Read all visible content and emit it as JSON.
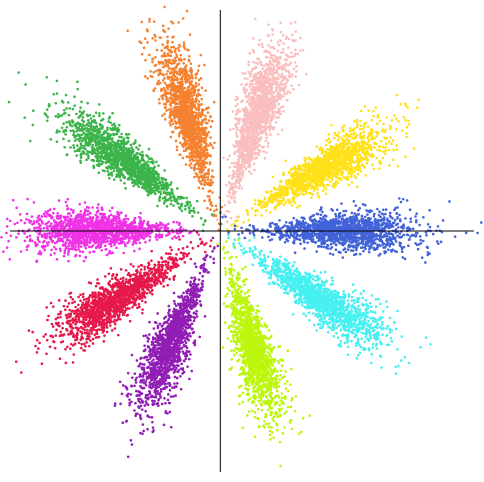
{
  "chart_data": {
    "type": "scatter",
    "title": "",
    "xlabel": "",
    "ylabel": "",
    "xlim": [
      -6.3,
      7.6
    ],
    "ylim": [
      -7.2,
      6.6
    ],
    "grid": false,
    "legend": "none",
    "axes_through_origin": true,
    "series": [
      {
        "color": "#4363d8",
        "direction_deg": 0,
        "points_per_cluster": 1500,
        "values": [
          [
            1.3,
            0
          ],
          [
            2.5,
            0
          ],
          [
            3.5,
            0
          ],
          [
            4.5,
            0
          ],
          [
            5.6,
            0
          ],
          [
            6.3,
            0
          ]
        ]
      },
      {
        "color": "#ffe119",
        "direction_deg": 31,
        "points_per_cluster": 1500,
        "values": [
          [
            1.5,
            0.9
          ],
          [
            2.5,
            1.5
          ],
          [
            3.4,
            2.1
          ],
          [
            4.3,
            2.6
          ],
          [
            5.1,
            3.1
          ],
          [
            5.5,
            3.4
          ]
        ]
      },
      {
        "color": "#fabebe",
        "direction_deg": 72,
        "points_per_cluster": 1500,
        "values": [
          [
            0.4,
            1.3
          ],
          [
            0.8,
            2.4
          ],
          [
            1.1,
            3.3
          ],
          [
            1.4,
            4.3
          ],
          [
            1.7,
            5.1
          ],
          [
            1.9,
            5.6
          ]
        ]
      },
      {
        "color": "#f58231",
        "direction_deg": 106,
        "points_per_cluster": 1500,
        "values": [
          [
            -0.3,
            1.2
          ],
          [
            -0.6,
            2.3
          ],
          [
            -0.9,
            3.4
          ],
          [
            -1.2,
            4.4
          ],
          [
            -1.5,
            5.4
          ],
          [
            -1.7,
            6.0
          ]
        ]
      },
      {
        "color": "#3cb44b",
        "direction_deg": 144,
        "points_per_cluster": 1500,
        "values": [
          [
            -0.8,
            0.6
          ],
          [
            -1.7,
            1.3
          ],
          [
            -2.5,
            1.9
          ],
          [
            -3.3,
            2.5
          ],
          [
            -3.9,
            2.9
          ],
          [
            -4.3,
            3.2
          ]
        ]
      },
      {
        "color": "#f032e6",
        "direction_deg": 180,
        "points_per_cluster": 1500,
        "values": [
          [
            -1.2,
            0
          ],
          [
            -2.3,
            0
          ],
          [
            -3.4,
            0
          ],
          [
            -4.5,
            0
          ],
          [
            -5.4,
            0
          ],
          [
            -5.9,
            0
          ]
        ]
      },
      {
        "color": "#e6194b",
        "direction_deg": 213,
        "points_per_cluster": 1500,
        "values": [
          [
            -1.0,
            -0.7
          ],
          [
            -2.0,
            -1.3
          ],
          [
            -3.0,
            -2.0
          ],
          [
            -3.9,
            -2.6
          ],
          [
            -4.7,
            -3.1
          ],
          [
            -5.0,
            -3.3
          ]
        ]
      },
      {
        "color": "#911eb4",
        "direction_deg": 246,
        "points_per_cluster": 1500,
        "values": [
          [
            -0.5,
            -1.1
          ],
          [
            -0.9,
            -2.2
          ],
          [
            -1.4,
            -3.2
          ],
          [
            -1.8,
            -4.2
          ],
          [
            -2.2,
            -5.0
          ],
          [
            -2.4,
            -5.5
          ]
        ]
      },
      {
        "color": "#bcf60c",
        "direction_deg": 286,
        "points_per_cluster": 1500,
        "values": [
          [
            0.3,
            -1.2
          ],
          [
            0.7,
            -2.3
          ],
          [
            1.0,
            -3.4
          ],
          [
            1.3,
            -4.4
          ],
          [
            1.5,
            -5.3
          ],
          [
            1.7,
            -5.8
          ]
        ]
      },
      {
        "color": "#46f0f0",
        "direction_deg": 326,
        "points_per_cluster": 1500,
        "values": [
          [
            0.9,
            -0.6
          ],
          [
            1.8,
            -1.2
          ],
          [
            2.8,
            -1.9
          ],
          [
            3.8,
            -2.6
          ],
          [
            4.6,
            -3.1
          ],
          [
            5.0,
            -3.4
          ]
        ]
      }
    ]
  }
}
